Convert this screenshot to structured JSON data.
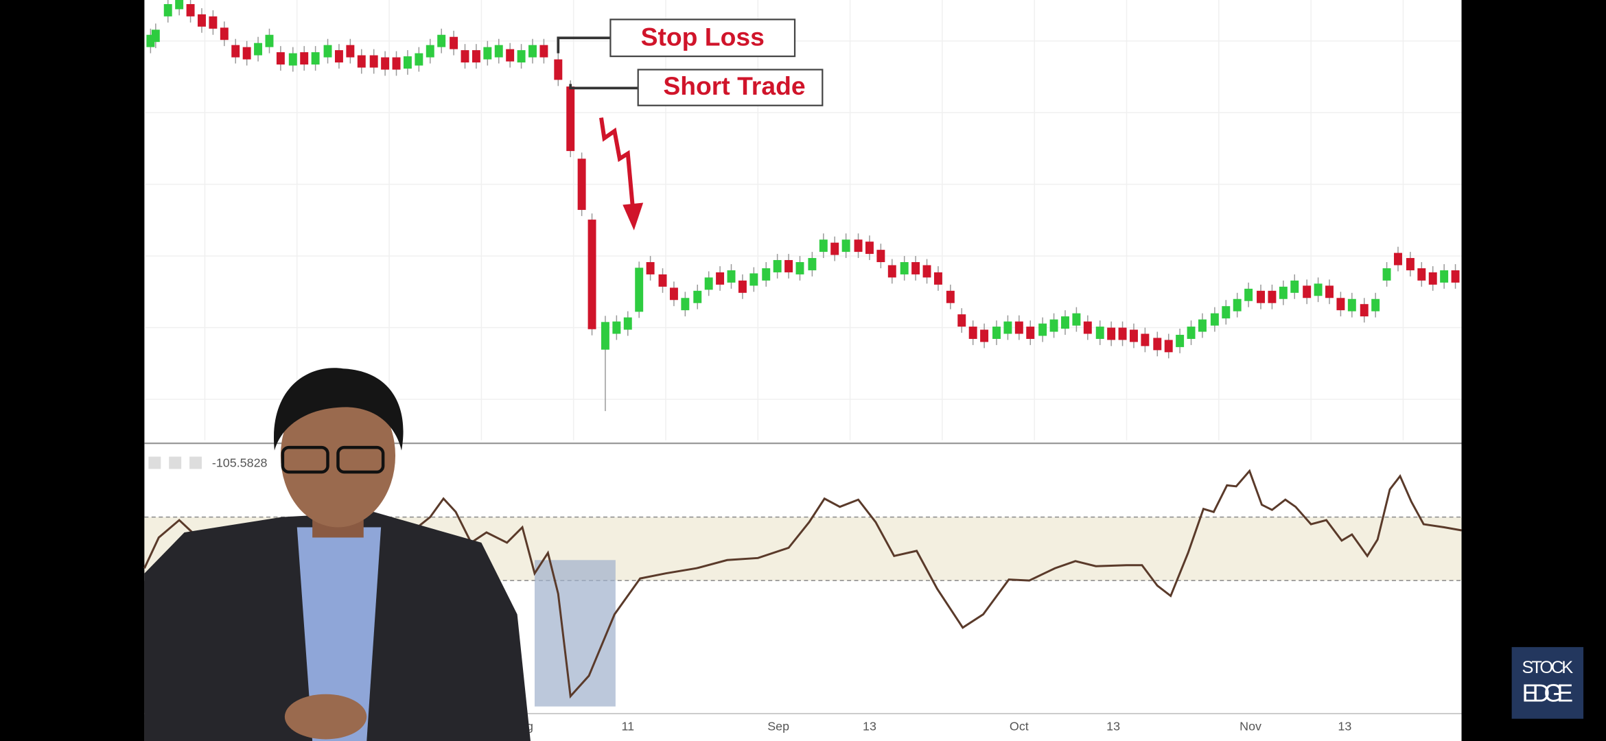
{
  "annotations": {
    "stop_loss": "Stop Loss",
    "short_trade": "Short Trade"
  },
  "indicator": {
    "value_label": "-105.5828"
  },
  "x_axis": {
    "labels": [
      "Aug",
      "11",
      "Sep",
      "13",
      "Oct",
      "13",
      "Nov",
      "13"
    ]
  },
  "logo": {
    "line1": "STOCK",
    "line2": "EDGE"
  }
}
